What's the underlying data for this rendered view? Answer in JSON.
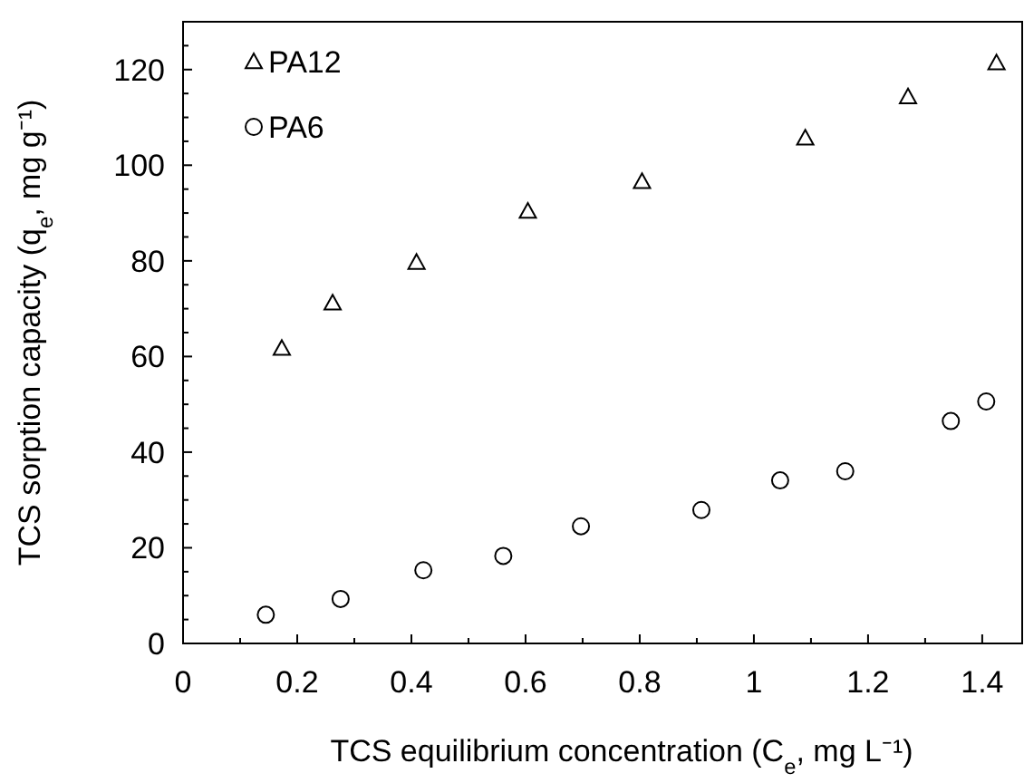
{
  "chart_data": {
    "type": "scatter",
    "xlabel": "TCS equilibrium concentration (C$_{e}$, mg L⁻¹)",
    "ylabel": "TCS sorption capacity (q$_{e}$, mg g⁻¹)",
    "xlim": [
      0,
      1.47
    ],
    "ylim": [
      0,
      130
    ],
    "xticks": [
      0,
      {
        "value": 0.1,
        "label": null
      },
      0.2,
      {
        "value": 0.3,
        "label": null
      },
      0.4,
      {
        "value": 0.5,
        "label": null
      },
      0.6,
      {
        "value": 0.7,
        "label": null
      },
      0.8,
      {
        "value": 0.9,
        "label": null
      },
      1,
      {
        "value": 1.1,
        "label": null
      },
      1.2,
      {
        "value": 1.3,
        "label": null
      },
      1.4
    ],
    "yticks": [
      0,
      {
        "value": 5,
        "label": null
      },
      {
        "value": 10,
        "label": null
      },
      {
        "value": 15,
        "label": null
      },
      20,
      {
        "value": 25,
        "label": null
      },
      {
        "value": 30,
        "label": null
      },
      {
        "value": 35,
        "label": null
      },
      40,
      {
        "value": 45,
        "label": null
      },
      {
        "value": 50,
        "label": null
      },
      {
        "value": 55,
        "label": null
      },
      60,
      {
        "value": 65,
        "label": null
      },
      {
        "value": 70,
        "label": null
      },
      {
        "value": 75,
        "label": null
      },
      80,
      {
        "value": 85,
        "label": null
      },
      {
        "value": 90,
        "label": null
      },
      {
        "value": 95,
        "label": null
      },
      100,
      {
        "value": 105,
        "label": null
      },
      {
        "value": 110,
        "label": null
      },
      {
        "value": 115,
        "label": null
      },
      120,
      {
        "value": 125,
        "label": null
      }
    ],
    "grid": false,
    "legend": "top left",
    "series": [
      {
        "name": "PA12",
        "color": "#000000",
        "marker": "triangle",
        "x": [
          0.173,
          0.262,
          0.409,
          0.604,
          0.804,
          1.09,
          1.27,
          1.425
        ],
        "values": [
          61.7,
          71.2,
          79.7,
          90.4,
          96.6,
          105.7,
          114.3,
          121.4
        ]
      },
      {
        "name": "PA6",
        "color": "#000000",
        "marker": "circle",
        "x": [
          0.145,
          0.276,
          0.421,
          0.561,
          0.697,
          0.908,
          1.046,
          1.16,
          1.345,
          1.407
        ],
        "values": [
          6.0,
          9.3,
          15.3,
          18.3,
          24.5,
          27.9,
          34.1,
          36.0,
          46.5,
          50.6
        ]
      }
    ]
  }
}
